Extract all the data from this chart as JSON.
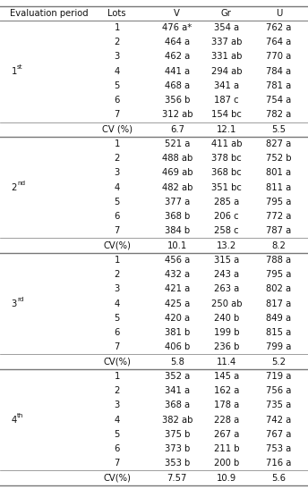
{
  "header": [
    "Evaluation period",
    "Lots",
    "V",
    "Gr",
    "U"
  ],
  "sections": [
    {
      "period_base": "1",
      "period_sup": "st",
      "rows": [
        [
          "1",
          "476 a*",
          "354 a",
          "762 a"
        ],
        [
          "2",
          "464 a",
          "337 ab",
          "764 a"
        ],
        [
          "3",
          "462 a",
          "331 ab",
          "770 a"
        ],
        [
          "4",
          "441 a",
          "294 ab",
          "784 a"
        ],
        [
          "5",
          "468 a",
          "341 a",
          "781 a"
        ],
        [
          "6",
          "356 b",
          "187 c",
          "754 a"
        ],
        [
          "7",
          "312 ab",
          "154 bc",
          "782 a"
        ]
      ],
      "cv": [
        "CV (%)",
        "6.7",
        "12.1",
        "5.5"
      ]
    },
    {
      "period_base": "2",
      "period_sup": "nd",
      "rows": [
        [
          "1",
          "521 a",
          "411 ab",
          "827 a"
        ],
        [
          "2",
          "488 ab",
          "378 bc",
          "752 b"
        ],
        [
          "3",
          "469 ab",
          "368 bc",
          "801 a"
        ],
        [
          "4",
          "482 ab",
          "351 bc",
          "811 a"
        ],
        [
          "5",
          "377 a",
          "285 a",
          "795 a"
        ],
        [
          "6",
          "368 b",
          "206 c",
          "772 a"
        ],
        [
          "7",
          "384 b",
          "258 c",
          "787 a"
        ]
      ],
      "cv": [
        "CV(%)",
        "10.1",
        "13.2",
        "8.2"
      ]
    },
    {
      "period_base": "3",
      "period_sup": "rd",
      "rows": [
        [
          "1",
          "456 a",
          "315 a",
          "788 a"
        ],
        [
          "2",
          "432 a",
          "243 a",
          "795 a"
        ],
        [
          "3",
          "421 a",
          "263 a",
          "802 a"
        ],
        [
          "4",
          "425 a",
          "250 ab",
          "817 a"
        ],
        [
          "5",
          "420 a",
          "240 b",
          "849 a"
        ],
        [
          "6",
          "381 b",
          "199 b",
          "815 a"
        ],
        [
          "7",
          "406 b",
          "236 b",
          "799 a"
        ]
      ],
      "cv": [
        "CV(%)",
        "5.8",
        "11.4",
        "5.2"
      ]
    },
    {
      "period_base": "4",
      "period_sup": "th",
      "rows": [
        [
          "1",
          "352 a",
          "145 a",
          "719 a"
        ],
        [
          "2",
          "341 a",
          "162 a",
          "756 a"
        ],
        [
          "3",
          "368 a",
          "178 a",
          "735 a"
        ],
        [
          "4",
          "382 ab",
          "228 a",
          "742 a"
        ],
        [
          "5",
          "375 b",
          "267 a",
          "767 a"
        ],
        [
          "6",
          "373 b",
          "211 b",
          "753 a"
        ],
        [
          "7",
          "353 b",
          "200 b",
          "716 a"
        ]
      ],
      "cv": [
        "CV(%)",
        "7.57",
        "10.9",
        "5.6"
      ]
    }
  ],
  "text_color": "#111111",
  "line_color": "#777777",
  "font_size": 7.2,
  "fig_width": 3.44,
  "fig_height": 5.47,
  "dpi": 100
}
